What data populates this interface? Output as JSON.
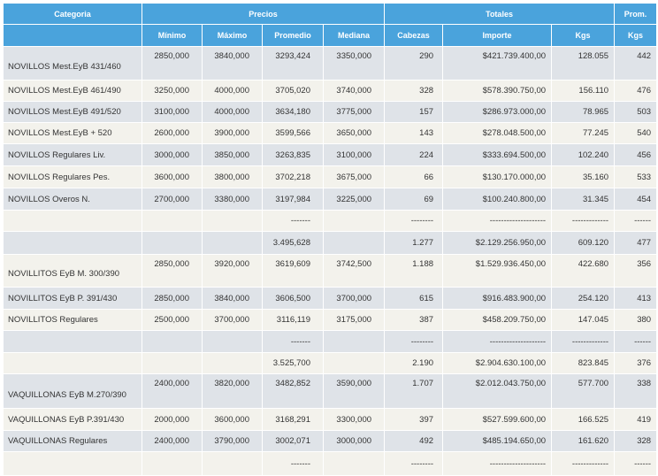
{
  "table": {
    "groups": [
      "Categoria",
      "Precios",
      "Totales",
      "Prom."
    ],
    "columns": [
      null,
      "Mínimo",
      "Máximo",
      "Promedio",
      "Mediana",
      "Cabezas",
      "Importe",
      "Kgs",
      "Kgs"
    ],
    "rows": [
      [
        "NOVILLOS Mest.EyB 431/460",
        "2850,000",
        "3840,000",
        "3293,424",
        "3350,000",
        "290",
        "$421.739.400,00",
        "128.055",
        "442"
      ],
      [
        "NOVILLOS Mest.EyB 461/490",
        "3250,000",
        "4000,000",
        "3705,020",
        "3740,000",
        "328",
        "$578.390.750,00",
        "156.110",
        "476"
      ],
      [
        "NOVILLOS Mest.EyB 491/520",
        "3100,000",
        "4000,000",
        "3634,180",
        "3775,000",
        "157",
        "$286.973.000,00",
        "78.965",
        "503"
      ],
      [
        "NOVILLOS Mest.EyB + 520",
        "2600,000",
        "3900,000",
        "3599,566",
        "3650,000",
        "143",
        "$278.048.500,00",
        "77.245",
        "540"
      ],
      [
        "NOVILLOS Regulares Liv.",
        "3000,000",
        "3850,000",
        "3263,835",
        "3100,000",
        "224",
        "$333.694.500,00",
        "102.240",
        "456"
      ],
      [
        "NOVILLOS Regulares Pes.",
        "3600,000",
        "3800,000",
        "3702,218",
        "3675,000",
        "66",
        "$130.170.000,00",
        "35.160",
        "533"
      ],
      [
        "NOVILLOS Overos N.",
        "2700,000",
        "3380,000",
        "3197,984",
        "3225,000",
        "69",
        "$100.240.800,00",
        "31.345",
        "454"
      ],
      [
        null,
        null,
        null,
        "-------",
        null,
        "--------",
        "--------------------",
        "-------------",
        "------"
      ],
      [
        null,
        null,
        null,
        "3.495,628",
        null,
        "1.277",
        "$2.129.256.950,00",
        "609.120",
        "477"
      ],
      [
        "NOVILLITOS EyB M. 300/390",
        "2850,000",
        "3920,000",
        "3619,609",
        "3742,500",
        "1.188",
        "$1.529.936.450,00",
        "422.680",
        "356"
      ],
      [
        "NOVILLITOS EyB P. 391/430",
        "2850,000",
        "3840,000",
        "3606,500",
        "3700,000",
        "615",
        "$916.483.900,00",
        "254.120",
        "413"
      ],
      [
        "NOVILLITOS Regulares",
        "2500,000",
        "3700,000",
        "3116,119",
        "3175,000",
        "387",
        "$458.209.750,00",
        "147.045",
        "380"
      ],
      [
        null,
        null,
        null,
        "-------",
        null,
        "--------",
        "--------------------",
        "-------------",
        "------"
      ],
      [
        null,
        null,
        null,
        "3.525,700",
        null,
        "2.190",
        "$2.904.630.100,00",
        "823.845",
        "376"
      ],
      [
        "VAQUILLONAS EyB M.270/390",
        "2400,000",
        "3820,000",
        "3482,852",
        "3590,000",
        "1.707",
        "$2.012.043.750,00",
        "577.700",
        "338"
      ],
      [
        "VAQUILLONAS EyB P.391/430",
        "2000,000",
        "3600,000",
        "3168,291",
        "3300,000",
        "397",
        "$527.599.600,00",
        "166.525",
        "419"
      ],
      [
        "VAQUILLONAS Regulares",
        "2400,000",
        "3790,000",
        "3002,071",
        "3000,000",
        "492",
        "$485.194.650,00",
        "161.620",
        "328"
      ],
      [
        null,
        null,
        null,
        "-------",
        null,
        "--------",
        "--------------------",
        "-------------",
        "------"
      ]
    ]
  }
}
